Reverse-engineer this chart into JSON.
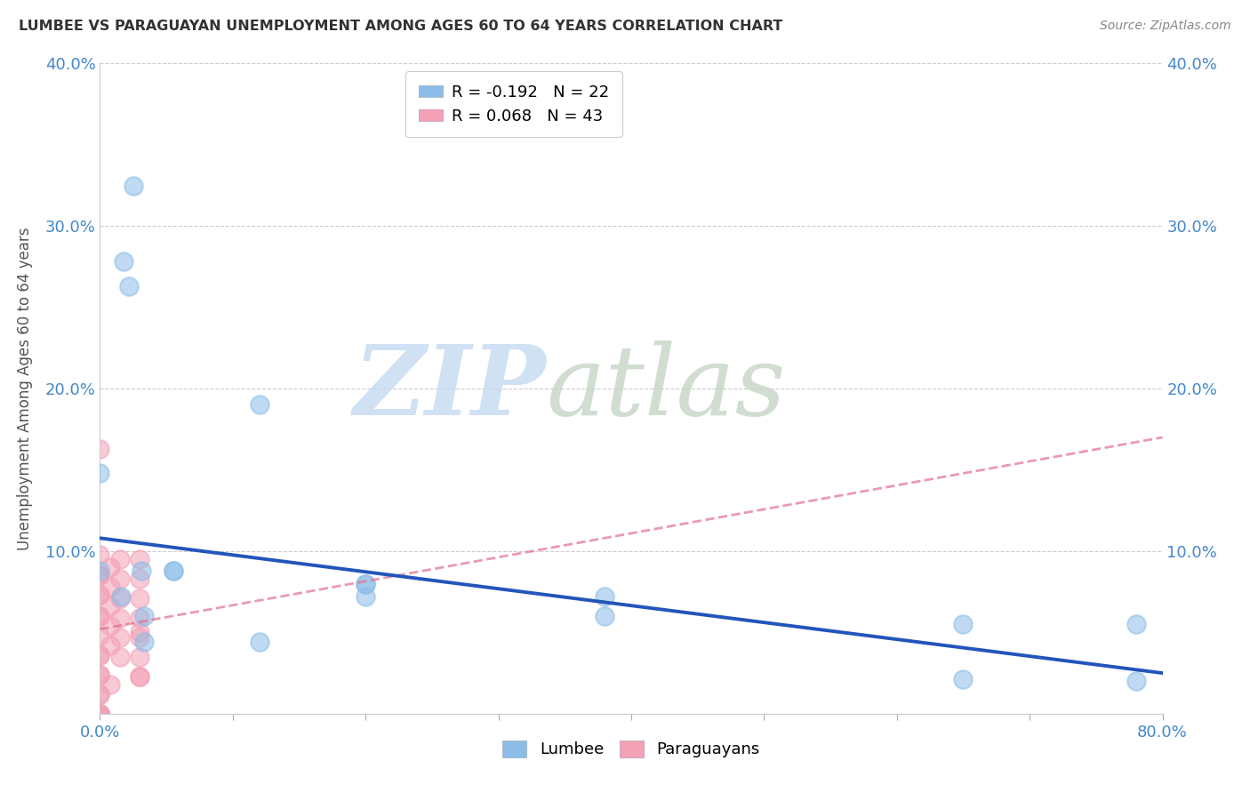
{
  "title": "LUMBEE VS PARAGUAYAN UNEMPLOYMENT AMONG AGES 60 TO 64 YEARS CORRELATION CHART",
  "source": "Source: ZipAtlas.com",
  "ylabel": "Unemployment Among Ages 60 to 64 years",
  "xlim": [
    0.0,
    0.8
  ],
  "ylim": [
    0.0,
    0.4
  ],
  "xtick_pos": [
    0.0,
    0.1,
    0.2,
    0.3,
    0.4,
    0.5,
    0.6,
    0.7,
    0.8
  ],
  "xticklabels": [
    "0.0%",
    "",
    "",
    "",
    "",
    "",
    "",
    "",
    "80.0%"
  ],
  "ytick_pos": [
    0.0,
    0.1,
    0.2,
    0.3,
    0.4
  ],
  "yticklabels": [
    "",
    "10.0%",
    "20.0%",
    "30.0%",
    "40.0%"
  ],
  "lumbee_color": "#8bbde8",
  "lumbee_line_color": "#2255bb",
  "paraguayan_color": "#f4a0b5",
  "paraguayan_line_color": "#e07090",
  "lumbee_R": -0.192,
  "lumbee_N": 22,
  "paraguayan_R": 0.068,
  "paraguayan_N": 43,
  "lumbee_x": [
    0.025,
    0.018,
    0.022,
    0.0,
    0.0,
    0.031,
    0.055,
    0.055,
    0.016,
    0.033,
    0.033,
    0.12,
    0.12,
    0.2,
    0.2,
    0.2,
    0.38,
    0.38,
    0.65,
    0.65,
    0.78,
    0.78
  ],
  "lumbee_y": [
    0.325,
    0.278,
    0.263,
    0.148,
    0.088,
    0.088,
    0.088,
    0.088,
    0.072,
    0.06,
    0.044,
    0.044,
    0.19,
    0.08,
    0.08,
    0.072,
    0.072,
    0.06,
    0.021,
    0.055,
    0.055,
    0.02
  ],
  "paraguayan_x": [
    0.0,
    0.0,
    0.0,
    0.0,
    0.0,
    0.0,
    0.0,
    0.0,
    0.0,
    0.0,
    0.0,
    0.0,
    0.0,
    0.0,
    0.0,
    0.0,
    0.0,
    0.0,
    0.0,
    0.0,
    0.0,
    0.0,
    0.008,
    0.008,
    0.008,
    0.008,
    0.008,
    0.008,
    0.015,
    0.015,
    0.015,
    0.015,
    0.015,
    0.015,
    0.03,
    0.03,
    0.03,
    0.03,
    0.03,
    0.03,
    0.03,
    0.03,
    0.03
  ],
  "paraguayan_y": [
    0.163,
    0.098,
    0.085,
    0.085,
    0.073,
    0.073,
    0.06,
    0.06,
    0.048,
    0.036,
    0.036,
    0.024,
    0.024,
    0.012,
    0.012,
    0.0,
    0.0,
    0.0,
    0.0,
    0.0,
    0.0,
    0.0,
    0.09,
    0.078,
    0.066,
    0.054,
    0.042,
    0.018,
    0.095,
    0.083,
    0.071,
    0.059,
    0.047,
    0.035,
    0.095,
    0.083,
    0.071,
    0.059,
    0.047,
    0.035,
    0.023,
    0.023,
    0.05
  ],
  "lumbee_line_x0": 0.0,
  "lumbee_line_y0": 0.108,
  "lumbee_line_x1": 0.8,
  "lumbee_line_y1": 0.025,
  "paraguayan_line_x0": 0.0,
  "paraguayan_line_y0": 0.052,
  "paraguayan_line_x1": 0.8,
  "paraguayan_line_y1": 0.17
}
